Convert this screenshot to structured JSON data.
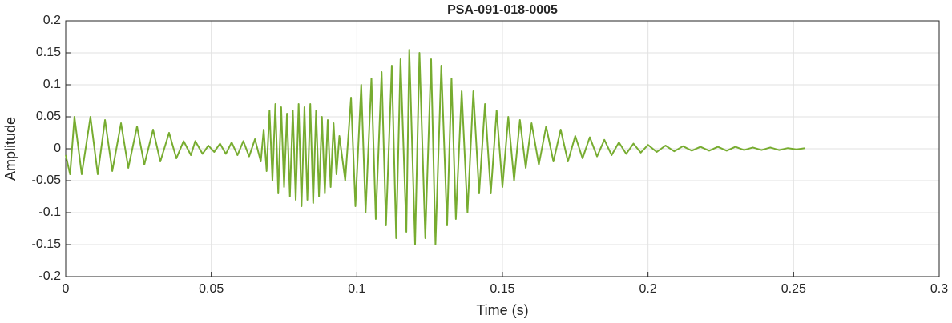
{
  "chart_data": {
    "type": "line",
    "title": "PSA-091-018-0005",
    "xlabel": "Time (s)",
    "ylabel": "Amplitude",
    "color": "#77ac30",
    "grid": true,
    "xlim": [
      0,
      0.3
    ],
    "xticks": [
      0,
      0.05,
      0.1,
      0.15,
      0.2,
      0.25,
      0.3
    ],
    "ylim": [
      -0.2,
      0.2
    ],
    "yticks": [
      -0.2,
      -0.15,
      -0.1,
      -0.05,
      0,
      0.05,
      0.1,
      0.15,
      0.2
    ],
    "x": [
      0,
      0.0015,
      0.003,
      0.0055,
      0.0085,
      0.011,
      0.0135,
      0.016,
      0.019,
      0.0215,
      0.0245,
      0.027,
      0.03,
      0.0325,
      0.0355,
      0.038,
      0.0405,
      0.043,
      0.0445,
      0.047,
      0.049,
      0.051,
      0.053,
      0.055,
      0.057,
      0.059,
      0.061,
      0.063,
      0.065,
      0.067,
      0.068,
      0.069,
      0.07,
      0.071,
      0.072,
      0.073,
      0.074,
      0.075,
      0.076,
      0.077,
      0.078,
      0.079,
      0.08,
      0.081,
      0.082,
      0.083,
      0.084,
      0.085,
      0.086,
      0.087,
      0.088,
      0.089,
      0.09,
      0.091,
      0.092,
      0.093,
      0.094,
      0.096,
      0.098,
      0.0995,
      0.1015,
      0.103,
      0.105,
      0.1065,
      0.1085,
      0.11,
      0.112,
      0.1135,
      0.115,
      0.117,
      0.118,
      0.12,
      0.1215,
      0.1235,
      0.1255,
      0.127,
      0.129,
      0.131,
      0.1325,
      0.134,
      0.136,
      0.138,
      0.14,
      0.142,
      0.144,
      0.146,
      0.148,
      0.15,
      0.152,
      0.154,
      0.156,
      0.158,
      0.16,
      0.1625,
      0.165,
      0.1675,
      0.17,
      0.1725,
      0.175,
      0.1775,
      0.18,
      0.1825,
      0.185,
      0.1875,
      0.19,
      0.1925,
      0.195,
      0.1975,
      0.2,
      0.203,
      0.206,
      0.209,
      0.212,
      0.215,
      0.218,
      0.221,
      0.224,
      0.227,
      0.23,
      0.233,
      0.236,
      0.239,
      0.242,
      0.245,
      0.248,
      0.251,
      0.254
    ],
    "values": [
      -0.01,
      -0.04,
      0.05,
      -0.04,
      0.05,
      -0.04,
      0.045,
      -0.035,
      0.04,
      -0.03,
      0.035,
      -0.025,
      0.03,
      -0.02,
      0.025,
      -0.015,
      0.012,
      -0.01,
      0.012,
      -0.008,
      0.005,
      -0.005,
      0.008,
      -0.008,
      0.01,
      -0.01,
      0.012,
      -0.012,
      0.015,
      -0.02,
      0.03,
      -0.035,
      0.06,
      -0.05,
      0.07,
      -0.07,
      0.065,
      -0.06,
      0.055,
      -0.075,
      0.06,
      -0.08,
      0.07,
      -0.09,
      0.065,
      -0.08,
      0.07,
      -0.085,
      0.06,
      -0.075,
      0.05,
      -0.07,
      0.045,
      -0.06,
      0.04,
      -0.04,
      0.02,
      -0.05,
      0.08,
      -0.09,
      0.1,
      -0.1,
      0.11,
      -0.11,
      0.12,
      -0.12,
      0.13,
      -0.14,
      0.14,
      -0.13,
      0.155,
      -0.15,
      0.15,
      -0.14,
      0.14,
      -0.15,
      0.13,
      -0.12,
      0.11,
      -0.11,
      0.09,
      -0.1,
      0.09,
      -0.07,
      0.07,
      -0.07,
      0.06,
      -0.06,
      0.05,
      -0.05,
      0.045,
      -0.03,
      0.04,
      -0.025,
      0.035,
      -0.02,
      0.03,
      -0.02,
      0.02,
      -0.015,
      0.018,
      -0.012,
      0.014,
      -0.01,
      0.01,
      -0.008,
      0.008,
      -0.006,
      0.006,
      -0.005,
      0.005,
      -0.004,
      0.004,
      -0.003,
      0.003,
      -0.003,
      0.003,
      -0.003,
      0.003,
      -0.002,
      0.002,
      -0.002,
      0.002,
      -0.002,
      0.001,
      -0.001,
      0.001
    ]
  }
}
